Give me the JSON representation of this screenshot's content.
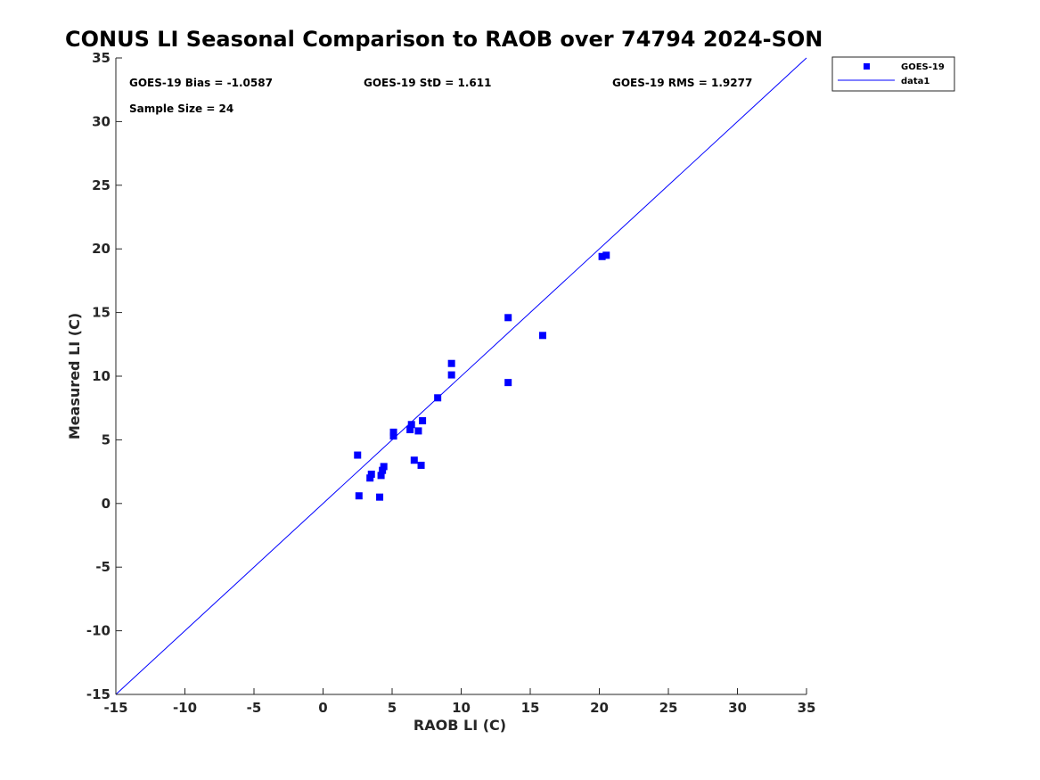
{
  "chart_data": {
    "type": "scatter",
    "title": "CONUS LI Seasonal Comparison to RAOB over 74794 2024-SON",
    "xlabel": "RAOB LI (C)",
    "ylabel": "Measured LI (C)",
    "xlim": [
      -15,
      35
    ],
    "ylim": [
      -15,
      35
    ],
    "xticks": [
      "-15",
      "-10",
      "-5",
      "0",
      "5",
      "10",
      "15",
      "20",
      "25",
      "30",
      "35"
    ],
    "yticks": [
      "-15",
      "-10",
      "-5",
      "0",
      "5",
      "10",
      "15",
      "20",
      "25",
      "30",
      "35"
    ],
    "grid": false,
    "annotations": {
      "bias": "GOES-19 Bias = -1.0587",
      "std": "GOES-19 StD = 1.611",
      "rms": "GOES-19 RMS = 1.9277",
      "sample": "Sample Size = 24"
    },
    "legend": {
      "position": "top-right-outside",
      "entries": [
        "GOES-19",
        "data1"
      ]
    },
    "series": [
      {
        "name": "GOES-19",
        "color": "#0000ff",
        "marker": "square",
        "x": [
          2.5,
          2.6,
          3.4,
          3.5,
          4.1,
          4.2,
          4.3,
          4.4,
          5.1,
          5.1,
          6.3,
          6.4,
          6.6,
          6.9,
          7.1,
          7.2,
          8.3,
          9.3,
          9.3,
          13.4,
          13.4,
          15.9,
          20.2,
          20.5
        ],
        "y": [
          3.8,
          0.6,
          2.0,
          2.3,
          0.5,
          2.2,
          2.6,
          2.9,
          5.3,
          5.6,
          5.8,
          6.2,
          3.4,
          5.7,
          3.0,
          6.5,
          8.3,
          10.1,
          11.0,
          9.5,
          14.6,
          13.2,
          19.4,
          19.5
        ]
      },
      {
        "name": "data1",
        "color": "#0000ff",
        "type": "line",
        "x": [
          -15,
          35
        ],
        "y": [
          -15,
          35
        ]
      }
    ]
  }
}
